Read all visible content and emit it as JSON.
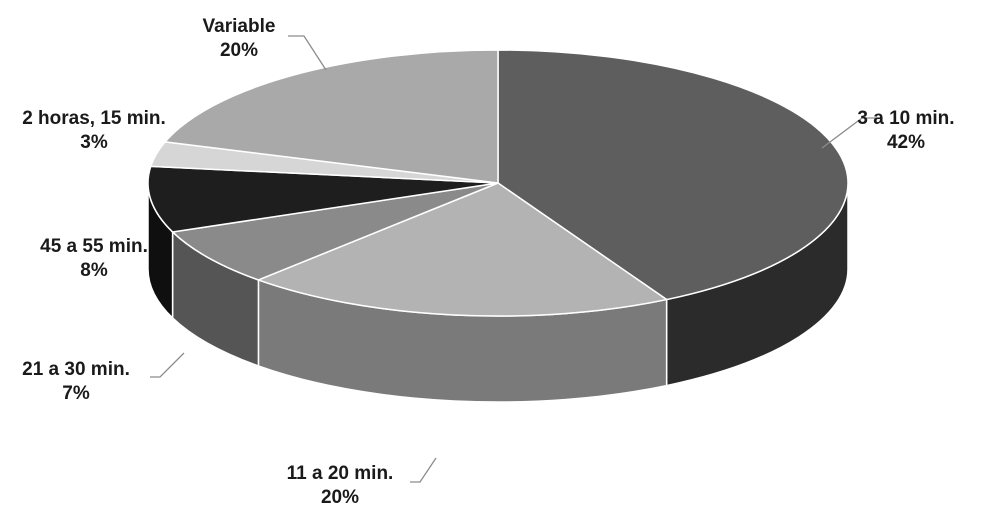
{
  "chart_data": {
    "type": "pie",
    "title": "",
    "slices": [
      {
        "label": "3 a 10 min.",
        "percent_label": "42%",
        "value": 42,
        "color": "#5e5e5e",
        "side_color": "#2b2b2b"
      },
      {
        "label": "11 a 20 min.",
        "percent_label": "20%",
        "value": 20,
        "color": "#b3b3b3",
        "side_color": "#7a7a7a"
      },
      {
        "label": "21 a 30 min.",
        "percent_label": "7%",
        "value": 7,
        "color": "#8a8a8a",
        "side_color": "#555555"
      },
      {
        "label": "45 a 55 min.",
        "percent_label": "8%",
        "value": 8,
        "color": "#1e1e1e",
        "side_color": "#0f0f0f"
      },
      {
        "label": "2 horas, 15 min.",
        "percent_label": "3%",
        "value": 3,
        "color": "#d6d6d6",
        "side_color": "#a0a0a0"
      },
      {
        "label": "Variable",
        "percent_label": "20%",
        "value": 20,
        "color": "#a9a9a9",
        "side_color": "#777777"
      }
    ],
    "start_angle": "top",
    "direction": "clockwise",
    "style": "3d",
    "legend": "none"
  }
}
